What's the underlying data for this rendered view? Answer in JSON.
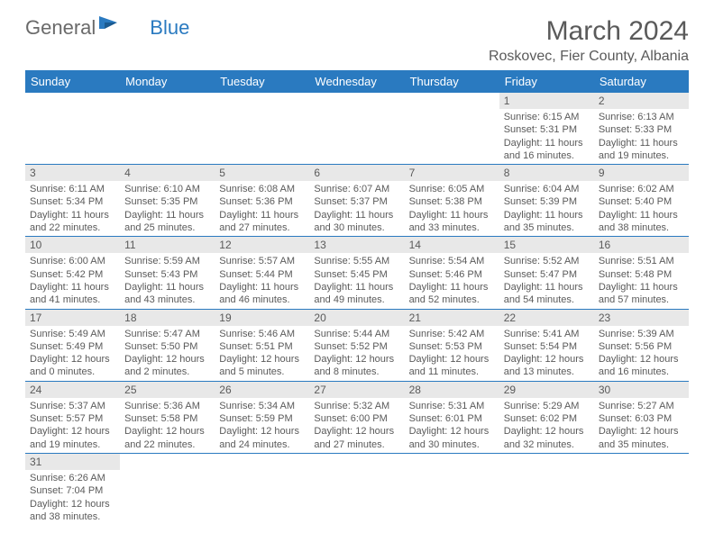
{
  "logo": {
    "part1": "General",
    "part2": "Blue"
  },
  "title": "March 2024",
  "location": "Roskovec, Fier County, Albania",
  "colors": {
    "header_bg": "#2a7ac0",
    "header_text": "#ffffff",
    "daynum_bg": "#e8e8e8",
    "text": "#5a5a5a",
    "border": "#2a7ac0"
  },
  "weekdays": [
    "Sunday",
    "Monday",
    "Tuesday",
    "Wednesday",
    "Thursday",
    "Friday",
    "Saturday"
  ],
  "weeks": [
    [
      null,
      null,
      null,
      null,
      null,
      {
        "n": "1",
        "sr": "6:15 AM",
        "ss": "5:31 PM",
        "dl": "11 hours and 16 minutes."
      },
      {
        "n": "2",
        "sr": "6:13 AM",
        "ss": "5:33 PM",
        "dl": "11 hours and 19 minutes."
      }
    ],
    [
      {
        "n": "3",
        "sr": "6:11 AM",
        "ss": "5:34 PM",
        "dl": "11 hours and 22 minutes."
      },
      {
        "n": "4",
        "sr": "6:10 AM",
        "ss": "5:35 PM",
        "dl": "11 hours and 25 minutes."
      },
      {
        "n": "5",
        "sr": "6:08 AM",
        "ss": "5:36 PM",
        "dl": "11 hours and 27 minutes."
      },
      {
        "n": "6",
        "sr": "6:07 AM",
        "ss": "5:37 PM",
        "dl": "11 hours and 30 minutes."
      },
      {
        "n": "7",
        "sr": "6:05 AM",
        "ss": "5:38 PM",
        "dl": "11 hours and 33 minutes."
      },
      {
        "n": "8",
        "sr": "6:04 AM",
        "ss": "5:39 PM",
        "dl": "11 hours and 35 minutes."
      },
      {
        "n": "9",
        "sr": "6:02 AM",
        "ss": "5:40 PM",
        "dl": "11 hours and 38 minutes."
      }
    ],
    [
      {
        "n": "10",
        "sr": "6:00 AM",
        "ss": "5:42 PM",
        "dl": "11 hours and 41 minutes."
      },
      {
        "n": "11",
        "sr": "5:59 AM",
        "ss": "5:43 PM",
        "dl": "11 hours and 43 minutes."
      },
      {
        "n": "12",
        "sr": "5:57 AM",
        "ss": "5:44 PM",
        "dl": "11 hours and 46 minutes."
      },
      {
        "n": "13",
        "sr": "5:55 AM",
        "ss": "5:45 PM",
        "dl": "11 hours and 49 minutes."
      },
      {
        "n": "14",
        "sr": "5:54 AM",
        "ss": "5:46 PM",
        "dl": "11 hours and 52 minutes."
      },
      {
        "n": "15",
        "sr": "5:52 AM",
        "ss": "5:47 PM",
        "dl": "11 hours and 54 minutes."
      },
      {
        "n": "16",
        "sr": "5:51 AM",
        "ss": "5:48 PM",
        "dl": "11 hours and 57 minutes."
      }
    ],
    [
      {
        "n": "17",
        "sr": "5:49 AM",
        "ss": "5:49 PM",
        "dl": "12 hours and 0 minutes."
      },
      {
        "n": "18",
        "sr": "5:47 AM",
        "ss": "5:50 PM",
        "dl": "12 hours and 2 minutes."
      },
      {
        "n": "19",
        "sr": "5:46 AM",
        "ss": "5:51 PM",
        "dl": "12 hours and 5 minutes."
      },
      {
        "n": "20",
        "sr": "5:44 AM",
        "ss": "5:52 PM",
        "dl": "12 hours and 8 minutes."
      },
      {
        "n": "21",
        "sr": "5:42 AM",
        "ss": "5:53 PM",
        "dl": "12 hours and 11 minutes."
      },
      {
        "n": "22",
        "sr": "5:41 AM",
        "ss": "5:54 PM",
        "dl": "12 hours and 13 minutes."
      },
      {
        "n": "23",
        "sr": "5:39 AM",
        "ss": "5:56 PM",
        "dl": "12 hours and 16 minutes."
      }
    ],
    [
      {
        "n": "24",
        "sr": "5:37 AM",
        "ss": "5:57 PM",
        "dl": "12 hours and 19 minutes."
      },
      {
        "n": "25",
        "sr": "5:36 AM",
        "ss": "5:58 PM",
        "dl": "12 hours and 22 minutes."
      },
      {
        "n": "26",
        "sr": "5:34 AM",
        "ss": "5:59 PM",
        "dl": "12 hours and 24 minutes."
      },
      {
        "n": "27",
        "sr": "5:32 AM",
        "ss": "6:00 PM",
        "dl": "12 hours and 27 minutes."
      },
      {
        "n": "28",
        "sr": "5:31 AM",
        "ss": "6:01 PM",
        "dl": "12 hours and 30 minutes."
      },
      {
        "n": "29",
        "sr": "5:29 AM",
        "ss": "6:02 PM",
        "dl": "12 hours and 32 minutes."
      },
      {
        "n": "30",
        "sr": "5:27 AM",
        "ss": "6:03 PM",
        "dl": "12 hours and 35 minutes."
      }
    ],
    [
      {
        "n": "31",
        "sr": "6:26 AM",
        "ss": "7:04 PM",
        "dl": "12 hours and 38 minutes."
      },
      null,
      null,
      null,
      null,
      null,
      null
    ]
  ],
  "labels": {
    "sunrise": "Sunrise:",
    "sunset": "Sunset:",
    "daylight": "Daylight:"
  }
}
